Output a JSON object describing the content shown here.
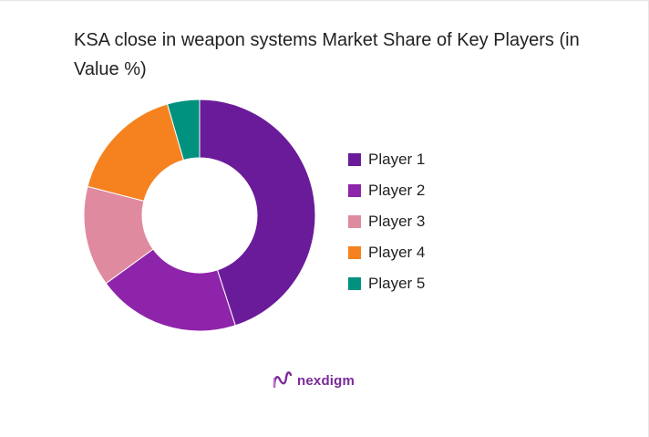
{
  "chart_data": {
    "type": "pie",
    "title": "KSA close in weapon systems Market Share of Key Players (in Value %)",
    "series": [
      {
        "name": "Player 1",
        "value": 45,
        "color": "#6a1b9a"
      },
      {
        "name": "Player 2",
        "value": 20,
        "color": "#8e24aa"
      },
      {
        "name": "Player 3",
        "value": 14,
        "color": "#e08aa0"
      },
      {
        "name": "Player 4",
        "value": 16.5,
        "color": "#f5821f"
      },
      {
        "name": "Player 5",
        "value": 4.5,
        "color": "#00917f"
      }
    ],
    "legend": "right"
  },
  "brand": {
    "name": "nexdigm",
    "icon": "nexdigm-logo-icon",
    "color": "#7a2a9a"
  }
}
